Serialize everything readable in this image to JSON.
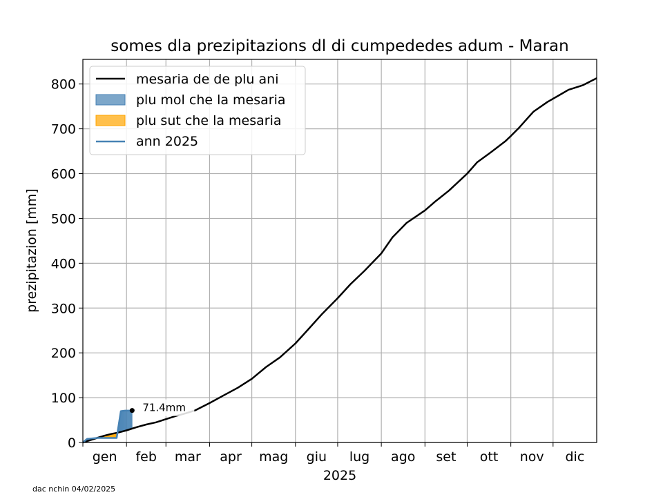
{
  "chart_data": {
    "type": "line",
    "title": "somes dla prezipitazions dl di cumpededes adum - Maran",
    "xlabel": "2025",
    "ylabel": "prezipitazion [mm]",
    "xlim": [
      0,
      365
    ],
    "ylim": [
      0,
      855
    ],
    "yticks": [
      0,
      100,
      200,
      300,
      400,
      500,
      600,
      700,
      800
    ],
    "month_starts": [
      0,
      31,
      59,
      90,
      120,
      151,
      181,
      212,
      243,
      273,
      304,
      334
    ],
    "month_labels": [
      "gen",
      "feb",
      "mar",
      "apr",
      "mag",
      "giu",
      "lug",
      "ago",
      "set",
      "ott",
      "nov",
      "dic"
    ],
    "grid": true,
    "legend_position": "upper-left",
    "legend": [
      {
        "label": "mesaria de de plu ani",
        "kind": "line",
        "color": "#000000"
      },
      {
        "label": "plu mol che la mesaria",
        "kind": "patch",
        "color": "#4682B4"
      },
      {
        "label": "plu sut che la mesaria",
        "kind": "patch",
        "color": "#FFA500"
      },
      {
        "label": "ann 2025",
        "kind": "line",
        "color": "#4682B4"
      }
    ],
    "series": [
      {
        "name": "mesaria de de plu ani",
        "color": "#000000",
        "x": [
          0,
          5,
          10,
          15,
          20,
          25,
          31,
          38,
          45,
          52,
          59,
          66,
          73,
          80,
          90,
          100,
          110,
          120,
          130,
          140,
          151,
          160,
          170,
          181,
          190,
          200,
          212,
          220,
          230,
          243,
          250,
          260,
          273,
          280,
          290,
          300,
          304,
          310,
          320,
          330,
          340,
          345,
          355,
          365
        ],
        "y": [
          0,
          5,
          10,
          15,
          19,
          22,
          27,
          34,
          40,
          45,
          52,
          59,
          65,
          72,
          88,
          105,
          122,
          142,
          168,
          190,
          221,
          252,
          287,
          322,
          353,
          383,
          422,
          458,
          490,
          518,
          537,
          562,
          600,
          625,
          648,
          672,
          684,
          703,
          738,
          760,
          778,
          787,
          797,
          813
        ]
      },
      {
        "name": "ann 2025",
        "color": "#4682B4",
        "x": [
          0,
          3,
          10,
          15,
          20,
          24,
          27,
          30,
          33,
          35
        ],
        "y": [
          0,
          8,
          10,
          10,
          10,
          10,
          70,
          71,
          71,
          71.4
        ]
      }
    ],
    "annotations": [
      {
        "text": "71.4mm",
        "x": 35,
        "y": 71.4
      }
    ],
    "footnote": "dac nchin 04/02/2025"
  }
}
